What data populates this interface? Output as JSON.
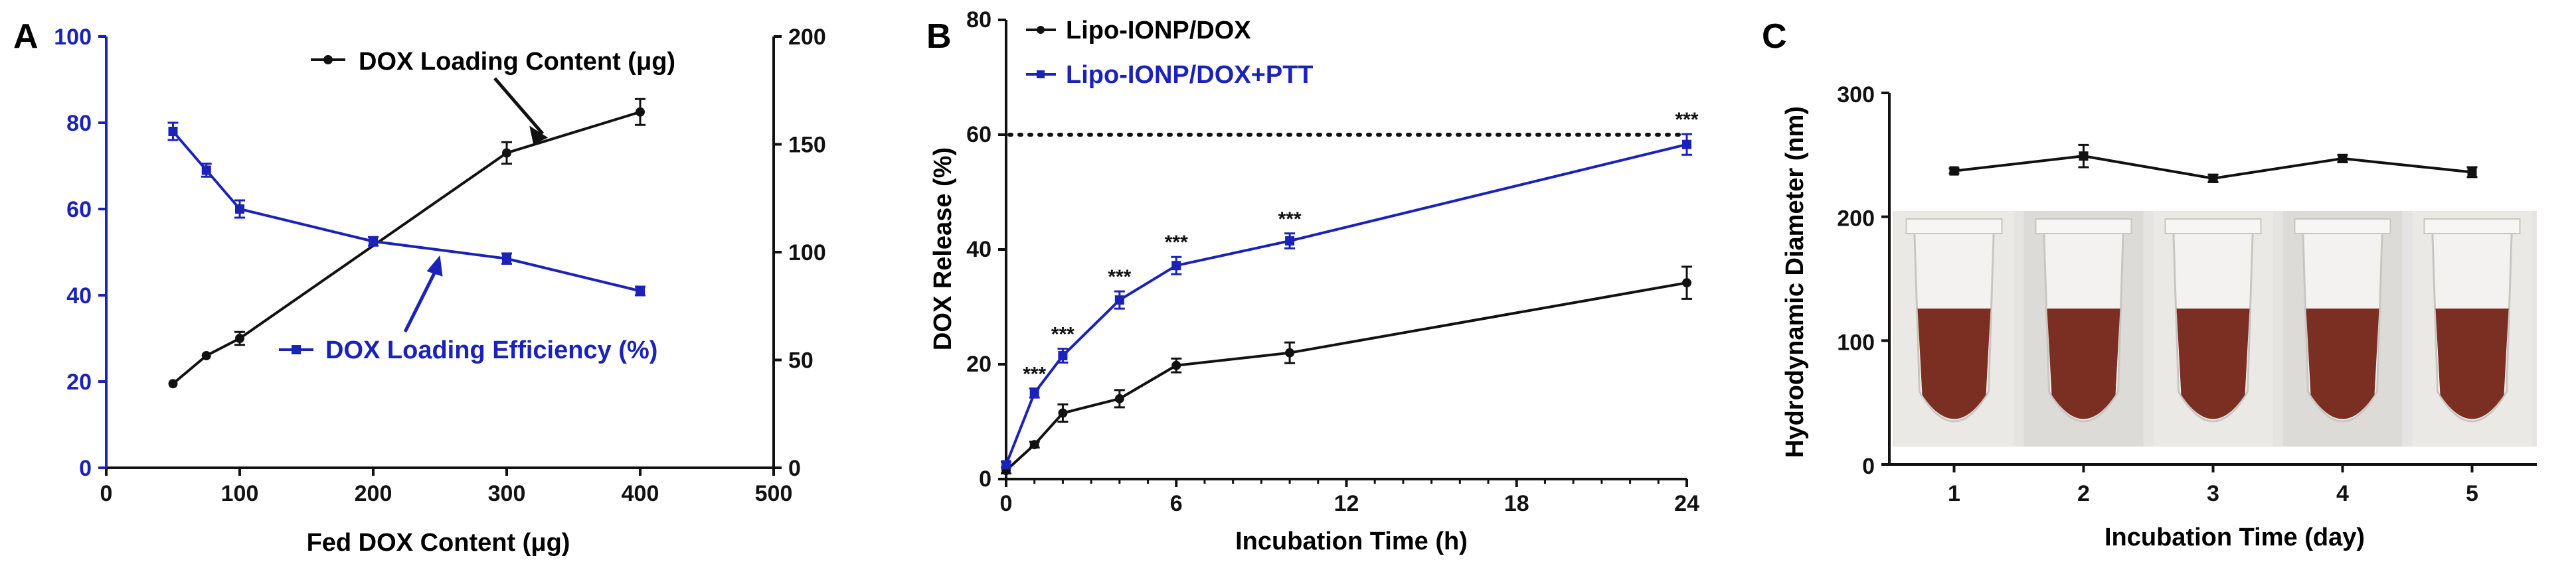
{
  "colors": {
    "black": "#111111",
    "blue": "#1a22b8",
    "tube_liquid": "#7b2f22",
    "tube_bg": "#e6e4e2"
  },
  "panels": {
    "A": {
      "letter": "A"
    },
    "B": {
      "letter": "B"
    },
    "C": {
      "letter": "C"
    }
  },
  "chart_data": [
    {
      "id": "A",
      "type": "line",
      "title": "",
      "xlabel": "Fed DOX Content (μg)",
      "xlim": [
        0,
        500
      ],
      "x_ticks": [
        "0",
        "100",
        "200",
        "300",
        "400",
        "500"
      ],
      "ylabel_left": "",
      "ylim_left": [
        0,
        100
      ],
      "left_ticks": [
        "0",
        "20",
        "40",
        "60",
        "80",
        "100"
      ],
      "ylabel_right": "",
      "ylim_right": [
        0,
        200
      ],
      "right_ticks": [
        "0",
        "50",
        "100",
        "150",
        "200"
      ],
      "series": [
        {
          "name": "DOX Loading Content (μg)",
          "axis": "right",
          "color": "black",
          "marker": "circle",
          "x": [
            50,
            75,
            100,
            300,
            400
          ],
          "values": [
            39,
            52,
            60,
            146,
            165
          ],
          "errors": [
            0,
            0,
            3,
            5,
            6
          ]
        },
        {
          "name": "DOX Loading Efficiency (%)",
          "axis": "left",
          "color": "blue",
          "marker": "square",
          "x": [
            50,
            75,
            100,
            200,
            300,
            400
          ],
          "values": [
            78,
            69,
            60,
            52.5,
            48.5,
            41
          ],
          "errors": [
            2,
            1.5,
            2,
            1,
            1.2,
            1
          ]
        }
      ],
      "annotations": [
        {
          "text": "DOX Loading Content (μg)",
          "arrow_to_series": "DOX Loading Content (μg)",
          "at_x": 320
        },
        {
          "text": "DOX Loading Efficiency (%)",
          "arrow_to_series": "DOX Loading Efficiency (%)",
          "at_x": 250
        }
      ]
    },
    {
      "id": "B",
      "type": "line",
      "title": "",
      "xlabel": "Incubation Time (h)",
      "ylabel": "DOX Release (%)",
      "xlim": [
        0,
        24
      ],
      "ylim": [
        0,
        80
      ],
      "x_ticks": [
        {
          "label": "0",
          "value": 0
        },
        {
          "label": "6",
          "value": 6
        },
        {
          "label": "12",
          "value": 12
        },
        {
          "label": "18",
          "value": 18
        },
        {
          "label": "24",
          "value": 24
        }
      ],
      "y_ticks": [
        "0",
        "20",
        "40",
        "60",
        "80"
      ],
      "legend_position": "top-left",
      "reference_line": {
        "y": 60,
        "style": "dotted"
      },
      "series": [
        {
          "name": "Lipo-IONP/DOX",
          "color": "black",
          "marker": "circle",
          "x": [
            0,
            1,
            2,
            4,
            6,
            10,
            24
          ],
          "values": [
            1.5,
            6,
            11.5,
            14,
            19.8,
            22,
            34.2
          ],
          "errors": [
            0.5,
            0.5,
            1.5,
            1.5,
            1.2,
            1.8,
            2.8
          ]
        },
        {
          "name": "Lipo-IONP/DOX+PTT",
          "color": "blue",
          "marker": "square",
          "x": [
            0,
            1,
            2,
            4,
            6,
            10,
            24
          ],
          "values": [
            2.5,
            15,
            21.5,
            31.2,
            37.2,
            41.5,
            58.3
          ],
          "errors": [
            0.5,
            0.8,
            1.2,
            1.5,
            1.5,
            1.3,
            1.8
          ]
        }
      ],
      "significance": {
        "label": "***",
        "x": [
          1,
          2,
          4,
          6,
          10,
          24
        ]
      }
    },
    {
      "id": "C",
      "type": "line",
      "title": "",
      "xlabel": "Incubation Time (day)",
      "ylabel": "Hydrodynamic Diameter (nm)",
      "xlim": [
        0.5,
        5.5
      ],
      "ylim": [
        0,
        300
      ],
      "categories": [
        "1",
        "2",
        "3",
        "4",
        "5"
      ],
      "y_ticks": [
        "0",
        "100",
        "200",
        "300"
      ],
      "series": [
        {
          "name": "Hydrodynamic Diameter",
          "color": "black",
          "marker": "square",
          "x": [
            1,
            2,
            3,
            4,
            5
          ],
          "values": [
            237,
            249,
            231,
            247,
            236
          ],
          "errors": [
            2,
            9,
            3,
            3,
            4
          ]
        }
      ],
      "inset_photo": {
        "tubes": [
          "tube-day-1",
          "tube-day-2",
          "tube-day-3",
          "tube-day-4",
          "tube-day-5"
        ]
      }
    }
  ]
}
